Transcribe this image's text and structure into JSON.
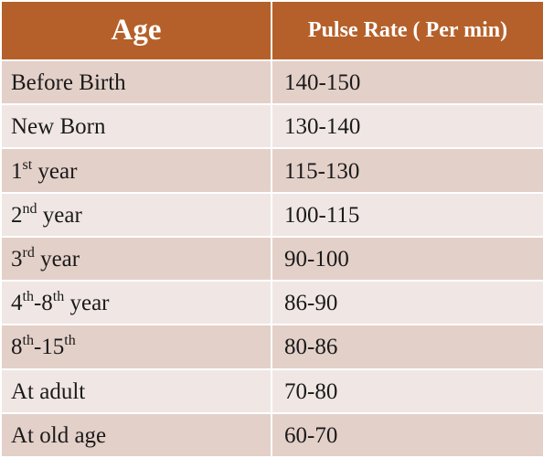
{
  "table": {
    "headers": {
      "age": "Age",
      "pulse_rate": "Pulse Rate ( Per min)"
    },
    "rows": [
      {
        "age": {
          "parts": [
            {
              "t": "Before Birth"
            }
          ]
        },
        "rate": "140-150"
      },
      {
        "age": {
          "parts": [
            {
              "t": "New Born"
            }
          ]
        },
        "rate": "130-140"
      },
      {
        "age": {
          "parts": [
            {
              "t": "1"
            },
            {
              "sup": "st"
            },
            {
              "t": " year"
            }
          ]
        },
        "rate": "115-130"
      },
      {
        "age": {
          "parts": [
            {
              "t": "2"
            },
            {
              "sup": "nd"
            },
            {
              "t": " year"
            }
          ]
        },
        "rate": "100-115"
      },
      {
        "age": {
          "parts": [
            {
              "t": "3"
            },
            {
              "sup": "rd"
            },
            {
              "t": " year"
            }
          ]
        },
        "rate": "90-100"
      },
      {
        "age": {
          "parts": [
            {
              "t": "4"
            },
            {
              "sup": "th"
            },
            {
              "t": "-8"
            },
            {
              "sup": "th"
            },
            {
              "t": " year"
            }
          ]
        },
        "rate": "86-90"
      },
      {
        "age": {
          "parts": [
            {
              "t": "8"
            },
            {
              "sup": "th"
            },
            {
              "t": "-15"
            },
            {
              "sup": "th"
            }
          ]
        },
        "rate": "80-86"
      },
      {
        "age": {
          "parts": [
            {
              "t": "At adult"
            }
          ]
        },
        "rate": "70-80"
      },
      {
        "age": {
          "parts": [
            {
              "t": "At old age"
            }
          ]
        },
        "rate": "60-70"
      }
    ]
  },
  "colors": {
    "header_bg": "#b5602a",
    "row_odd_bg": "#e3d0c9",
    "row_even_bg": "#f0e7e4"
  }
}
